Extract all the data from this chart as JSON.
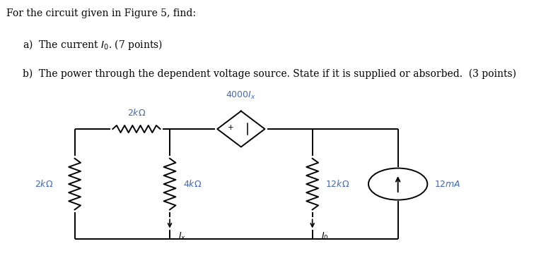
{
  "title_text": "For the circuit given in Figure 5, find:",
  "line_a": "a)  The current $I_0$. (7 points)",
  "line_b": "b)  The power through the dependent voltage source. State if it is supplied or absorbed.  (3 points)",
  "bg_color": "#ffffff",
  "text_color": "#000000",
  "label_color": "#4169B0",
  "circuit_color": "#000000",
  "resistor_color": "#000000",
  "label_2kOhm_top": "$2k\\Omega$",
  "label_2kOhm_left": "$2k\\Omega$",
  "label_4kOhm": "$4k\\Omega$",
  "label_12kOhm": "$12k\\Omega$",
  "label_cs": "$12mA$",
  "label_vs": "$4000I_x$",
  "label_Ix": "$I_x$",
  "label_I0": "$I_0$"
}
